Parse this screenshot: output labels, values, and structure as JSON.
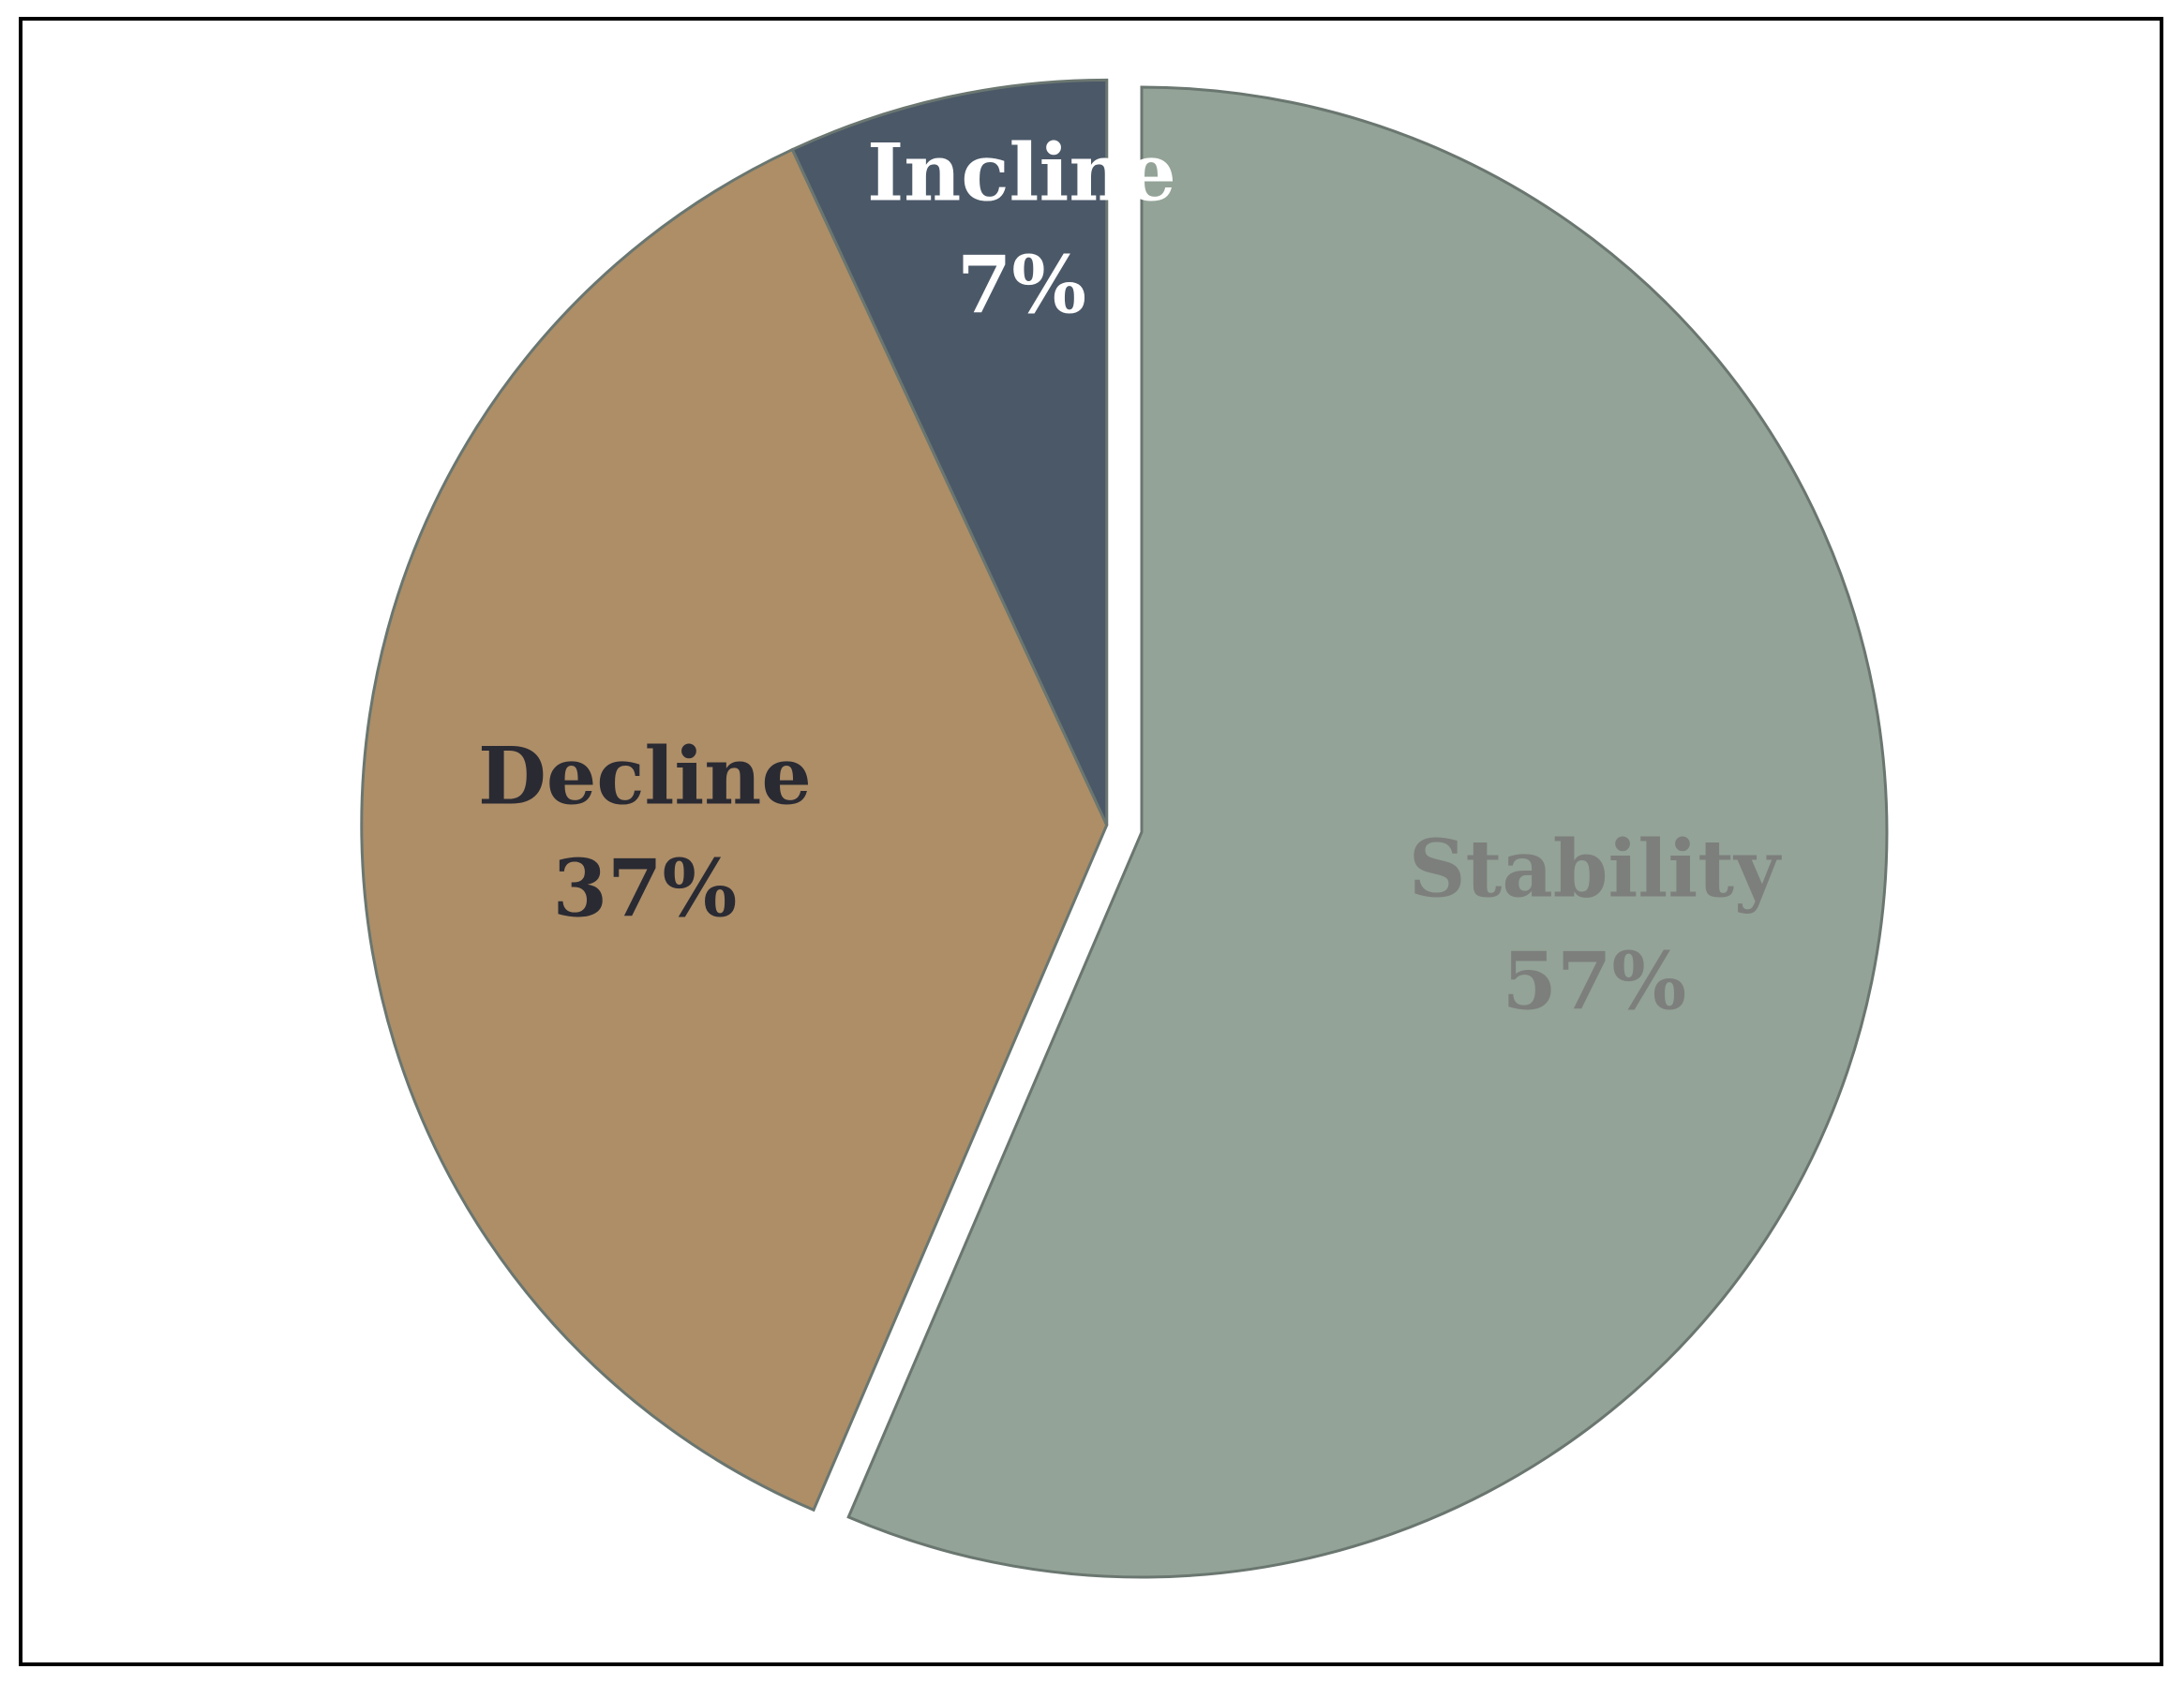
{
  "chart_data": {
    "type": "pie",
    "title": "",
    "slices": [
      {
        "label": "Stability",
        "percent_label": "57%",
        "value": 57,
        "color": "#93a397",
        "label_color": "#7d7f7d",
        "exploded": false
      },
      {
        "label": "Decline",
        "percent_label": "37%",
        "value": 37,
        "color": "#ad8e67",
        "label_color": "#2a2a33",
        "exploded": true
      },
      {
        "label": "Incline",
        "percent_label": "7%",
        "value": 7,
        "color": "#4b5868",
        "label_color": "#ffffff",
        "exploded": true
      }
    ],
    "start_angle": "12 o'clock",
    "direction": "clockwise",
    "legend": "none",
    "slice_border_color": "#6a7670"
  }
}
